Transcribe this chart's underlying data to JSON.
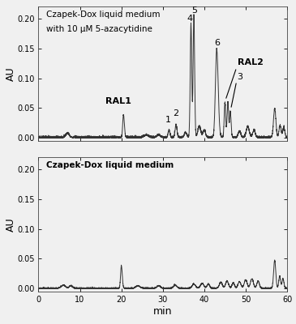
{
  "title1_line1": "Czapek-Dox liquid medium",
  "title1_line2": "with 10 μM 5-azacytidine",
  "title2": "Czapek-Dox liquid medium",
  "ylabel": "AU",
  "xlabel": "min",
  "xlim": [
    0,
    60
  ],
  "ylim": [
    -0.005,
    0.22
  ],
  "yticks": [
    0.0,
    0.05,
    0.1,
    0.15,
    0.2
  ],
  "ytick_labels": [
    "0.00",
    "0.05",
    "0.10",
    "0.15",
    "0.20"
  ],
  "xticks": [
    0,
    10,
    20,
    30,
    40,
    50,
    60
  ],
  "xtick_labels": [
    "0",
    "10",
    "20",
    "30",
    "40",
    "50",
    "60"
  ],
  "line_color": "#333333",
  "line_width": 0.7,
  "bg_color": "#f0f0f0",
  "panel_bg": "#f0f0f0"
}
